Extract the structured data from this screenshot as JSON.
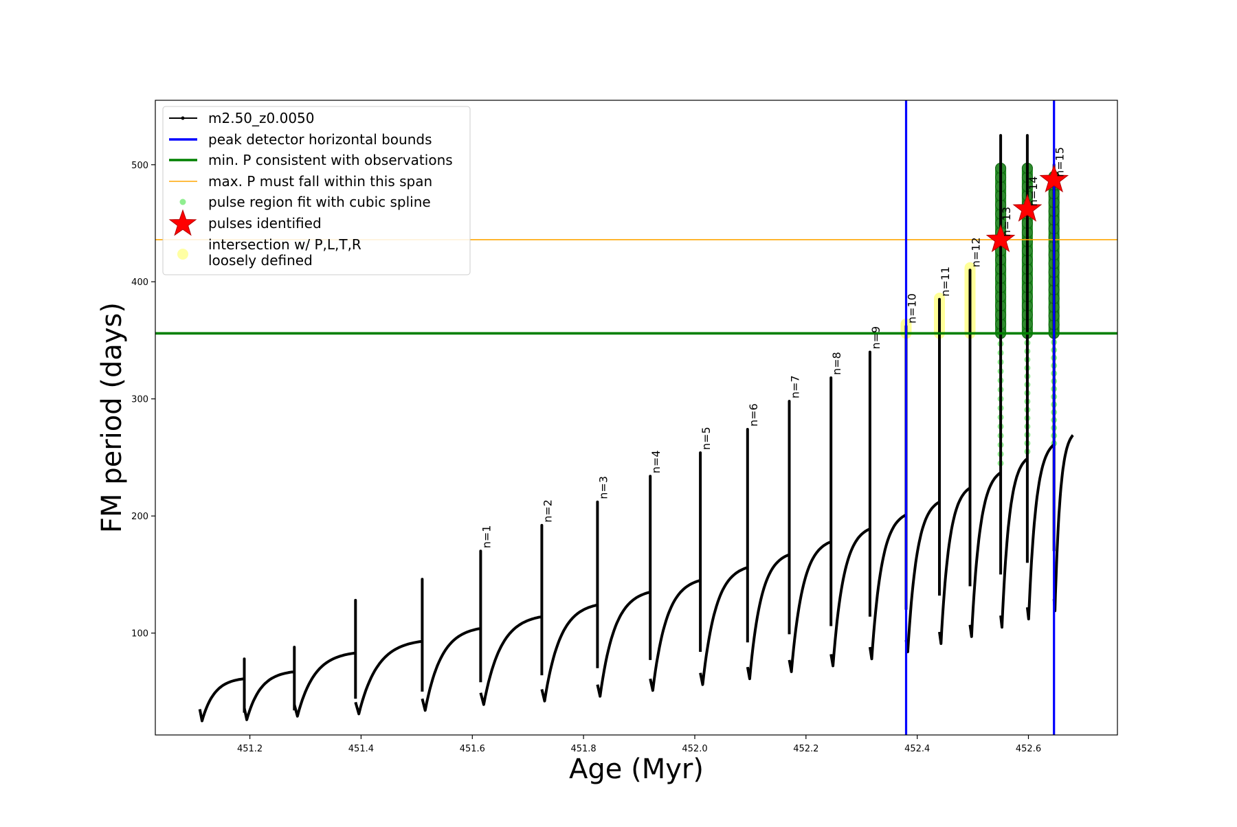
{
  "chart_data": {
    "type": "line",
    "xlabel": "Age (Myr)",
    "ylabel": "FM period (days)",
    "xlim": [
      451.03,
      452.76
    ],
    "ylim": [
      13,
      555
    ],
    "xticks": [
      451.2,
      451.4,
      451.6,
      451.8,
      452.0,
      452.2,
      452.4,
      452.6
    ],
    "xtick_labels": [
      "451.2",
      "451.4",
      "451.6",
      "451.8",
      "452.0",
      "452.2",
      "452.4",
      "452.6"
    ],
    "yticks": [
      100,
      200,
      300,
      400,
      500
    ],
    "ytick_labels": [
      "100",
      "200",
      "300",
      "400",
      "500"
    ],
    "grid": false,
    "legend_position": "top-left",
    "legend": [
      {
        "label": "m2.50_z0.0050",
        "kind": "line-marker",
        "color": "#000000"
      },
      {
        "label": "peak detector horizontal bounds",
        "kind": "line",
        "color": "#0000ff"
      },
      {
        "label": "min. P consistent with observations",
        "kind": "line",
        "color": "#008000"
      },
      {
        "label": "max. P must fall within this span",
        "kind": "thin-line",
        "color": "#ffa500"
      },
      {
        "label": "pulse region fit with cubic spline",
        "kind": "dot",
        "color": "#90ee90"
      },
      {
        "label": "pulses identified",
        "kind": "star",
        "color": "#ff0000"
      },
      {
        "label": "intersection w/ P,L,T,R",
        "label2": "loosely defined",
        "kind": "big-dot",
        "color": "#ffff99"
      }
    ],
    "series_line_color": "#000000",
    "cycles": [
      {
        "x_start": 451.11,
        "x_peak": 451.19,
        "y_min": 25,
        "y_plateau": 61,
        "y_spike": 78,
        "y_drop": 32
      },
      {
        "x_start": 451.19,
        "x_peak": 451.28,
        "y_min": 26,
        "y_plateau": 67,
        "y_spike": 88,
        "y_drop": 34
      },
      {
        "x_start": 451.28,
        "x_peak": 451.39,
        "y_min": 29,
        "y_plateau": 83,
        "y_spike": 128,
        "y_drop": 44
      },
      {
        "x_start": 451.39,
        "x_peak": 451.51,
        "y_min": 31,
        "y_plateau": 93,
        "y_spike": 146,
        "y_drop": 50
      },
      {
        "x_start": 451.51,
        "x_peak": 451.615,
        "y_min": 34,
        "y_plateau": 104,
        "y_spike": 170,
        "y_drop": 58
      },
      {
        "x_start": 451.615,
        "x_peak": 451.725,
        "y_min": 39,
        "y_plateau": 114,
        "y_spike": 192,
        "y_drop": 64
      },
      {
        "x_start": 451.725,
        "x_peak": 451.825,
        "y_min": 42,
        "y_plateau": 124,
        "y_spike": 212,
        "y_drop": 70
      },
      {
        "x_start": 451.825,
        "x_peak": 451.92,
        "y_min": 46,
        "y_plateau": 135,
        "y_spike": 234,
        "y_drop": 77
      },
      {
        "x_start": 451.92,
        "x_peak": 452.01,
        "y_min": 51,
        "y_plateau": 145,
        "y_spike": 254,
        "y_drop": 84
      },
      {
        "x_start": 452.01,
        "x_peak": 452.095,
        "y_min": 56,
        "y_plateau": 156,
        "y_spike": 274,
        "y_drop": 92
      },
      {
        "x_start": 452.095,
        "x_peak": 452.17,
        "y_min": 61,
        "y_plateau": 167,
        "y_spike": 298,
        "y_drop": 99
      },
      {
        "x_start": 452.17,
        "x_peak": 452.245,
        "y_min": 67,
        "y_plateau": 178,
        "y_spike": 318,
        "y_drop": 106
      },
      {
        "x_start": 452.245,
        "x_peak": 452.315,
        "y_min": 72,
        "y_plateau": 189,
        "y_spike": 340,
        "y_drop": 114
      },
      {
        "x_start": 452.315,
        "x_peak": 452.38,
        "y_min": 78,
        "y_plateau": 201,
        "y_spike": 362,
        "y_drop": 120
      },
      {
        "x_start": 452.38,
        "x_peak": 452.44,
        "y_min": 84,
        "y_plateau": 212,
        "y_spike": 385,
        "y_drop": 132
      },
      {
        "x_start": 452.44,
        "x_peak": 452.495,
        "y_min": 91,
        "y_plateau": 224,
        "y_spike": 410,
        "y_drop": 140
      },
      {
        "x_start": 452.495,
        "x_peak": 452.55,
        "y_min": 97,
        "y_plateau": 237,
        "y_spike": 525,
        "y_drop": 150
      },
      {
        "x_start": 452.55,
        "x_peak": 452.598,
        "y_min": 105,
        "y_plateau": 249,
        "y_spike": 525,
        "y_drop": 160
      },
      {
        "x_start": 452.598,
        "x_peak": 452.646,
        "y_min": 112,
        "y_plateau": 261,
        "y_spike": 500,
        "y_drop": 170
      },
      {
        "x_start": 452.646,
        "x_peak": 452.68,
        "y_min": 119,
        "y_plateau": 269,
        "y_spike": null,
        "y_drop": null
      }
    ],
    "pulse_labels": [
      {
        "text": "n=1",
        "x": 451.615,
        "y": 170
      },
      {
        "text": "n=2",
        "x": 451.725,
        "y": 192
      },
      {
        "text": "n=3",
        "x": 451.825,
        "y": 212
      },
      {
        "text": "n=4",
        "x": 451.92,
        "y": 234
      },
      {
        "text": "n=5",
        "x": 452.01,
        "y": 254
      },
      {
        "text": "n=6",
        "x": 452.095,
        "y": 274
      },
      {
        "text": "n=7",
        "x": 452.17,
        "y": 298
      },
      {
        "text": "n=8",
        "x": 452.245,
        "y": 318
      },
      {
        "text": "n=9",
        "x": 452.315,
        "y": 340
      },
      {
        "text": "n=10",
        "x": 452.38,
        "y": 362
      },
      {
        "text": "n=11",
        "x": 452.44,
        "y": 385
      },
      {
        "text": "n=12",
        "x": 452.495,
        "y": 410
      },
      {
        "text": "n=13",
        "x": 452.55,
        "y": 436
      },
      {
        "text": "n=14",
        "x": 452.598,
        "y": 462
      },
      {
        "text": "n=15",
        "x": 452.646,
        "y": 487
      }
    ],
    "peak_bounds_x": [
      452.38,
      452.646
    ],
    "min_period": 356,
    "max_period_line": 436,
    "loosely_defined": [
      {
        "x": 452.38,
        "y_from": 356,
        "y_to": 364
      },
      {
        "x": 452.44,
        "y_from": 356,
        "y_to": 386
      },
      {
        "x": 452.495,
        "y_from": 356,
        "y_to": 412
      }
    ],
    "spline_regions": [
      {
        "x": 452.55,
        "y_from": 245,
        "y_to": 355
      },
      {
        "x": 452.598,
        "y_from": 255,
        "y_to": 355
      },
      {
        "x": 452.646,
        "y_from": 262,
        "y_to": 355
      }
    ],
    "identified_regions": [
      {
        "x": 452.55,
        "y_from": 356,
        "y_to": 497
      },
      {
        "x": 452.598,
        "y_from": 356,
        "y_to": 497
      },
      {
        "x": 452.646,
        "y_from": 356,
        "y_to": 490
      }
    ],
    "pulses_identified": [
      {
        "x": 452.55,
        "y": 436
      },
      {
        "x": 452.598,
        "y": 462
      },
      {
        "x": 452.646,
        "y": 487
      }
    ]
  }
}
